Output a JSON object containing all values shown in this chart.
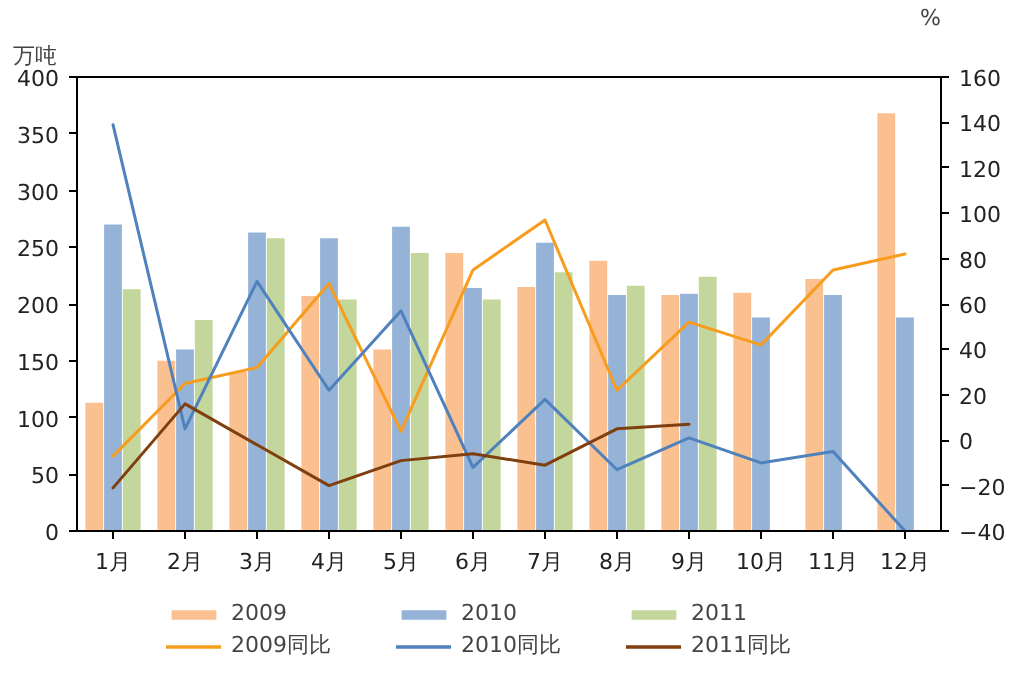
{
  "chart_data": {
    "type": "bar",
    "ylabel": "万吨",
    "y2label": "%",
    "categories": [
      "1月",
      "2月",
      "3月",
      "4月",
      "5月",
      "6月",
      "7月",
      "8月",
      "9月",
      "10月",
      "11月",
      "12月"
    ],
    "series": [
      {
        "name": "2009",
        "color": "#fac090",
        "values": [
          113,
          150,
          140,
          207,
          160,
          245,
          215,
          238,
          208,
          210,
          222,
          368
        ]
      },
      {
        "name": "2010",
        "color": "#95b3d7",
        "values": [
          270,
          160,
          263,
          258,
          268,
          214,
          254,
          208,
          209,
          188,
          208,
          188
        ]
      },
      {
        "name": "2011",
        "color": "#c3d69b",
        "values": [
          213,
          186,
          258,
          204,
          245,
          204,
          228,
          216,
          224,
          null,
          null,
          null
        ]
      },
      {
        "name": "2009同比",
        "type": "line",
        "axis": "y2",
        "color": "#f79c1c",
        "values": [
          -7,
          25,
          32,
          69,
          4,
          75,
          97,
          22,
          52,
          42,
          75,
          82
        ]
      },
      {
        "name": "2010同比",
        "type": "line",
        "axis": "y2",
        "color": "#4f81bd",
        "values": [
          139,
          5,
          70,
          22,
          57,
          -12,
          18,
          -13,
          1,
          -10,
          -5,
          -40
        ]
      },
      {
        "name": "2011同比",
        "type": "line",
        "axis": "y2",
        "color": "#7f3f0f",
        "values": [
          -21,
          16,
          -2,
          -20,
          -9,
          -6,
          -11,
          5,
          7,
          null,
          null,
          null
        ]
      }
    ],
    "ylim": [
      0,
      400
    ],
    "yticks": [
      0,
      50,
      100,
      150,
      200,
      250,
      300,
      350,
      400
    ],
    "y2lim": [
      -40,
      160
    ],
    "y2ticks": [
      -40,
      -20,
      0,
      20,
      40,
      60,
      80,
      100,
      120,
      140,
      160
    ],
    "grid": false,
    "legend": "bottom"
  }
}
